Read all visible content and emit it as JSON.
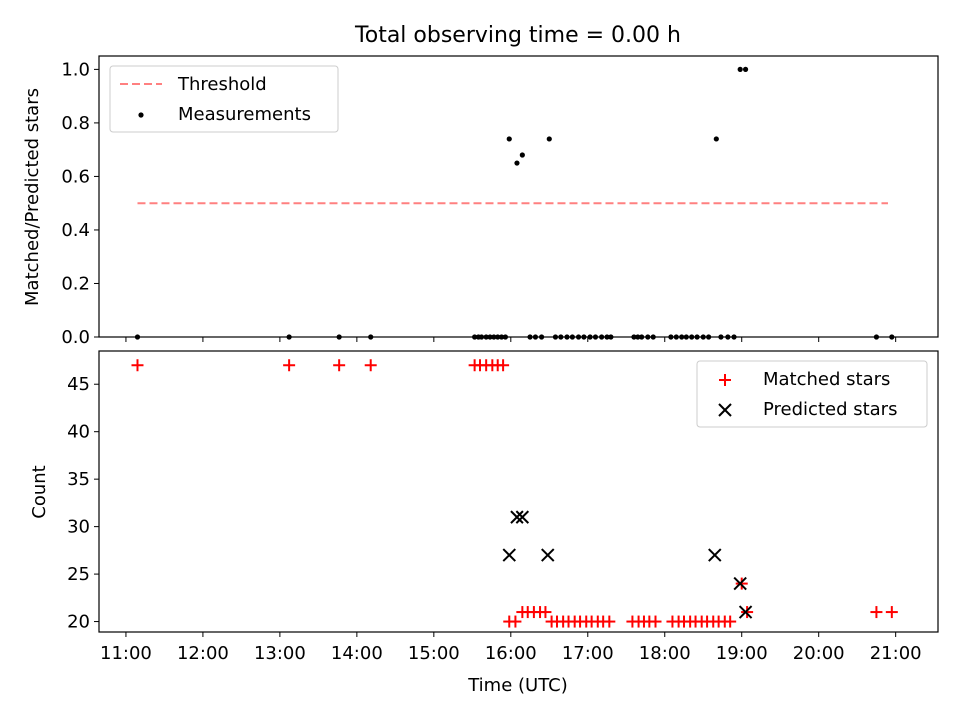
{
  "title": "Total observing time = 0.00 h",
  "colors": {
    "threshold": "#ff8080",
    "matched": "#ff0000",
    "predicted": "#000000",
    "measurement": "#000000"
  },
  "chart_data": [
    {
      "type": "scatter",
      "panel": "top",
      "title": "Total observing time = 0.00 h",
      "ylabel": "Matched/Predicted stars",
      "xlabel": "",
      "xlim": [
        10.65,
        21.55
      ],
      "ylim": [
        0,
        1.05
      ],
      "x_ticks": [
        11,
        12,
        13,
        14,
        15,
        16,
        17,
        18,
        19,
        20,
        21
      ],
      "x_tick_labels": [
        "11:00",
        "12:00",
        "13:00",
        "14:00",
        "15:00",
        "16:00",
        "17:00",
        "18:00",
        "19:00",
        "20:00",
        "21:00"
      ],
      "y_ticks": [
        0.0,
        0.2,
        0.4,
        0.6,
        0.8,
        1.0
      ],
      "y_tick_labels": [
        "0.0",
        "0.2",
        "0.4",
        "0.6",
        "0.8",
        "1.0"
      ],
      "legend": {
        "placement": "top-left",
        "entries": [
          "Threshold",
          "Measurements"
        ]
      },
      "threshold": {
        "name": "Threshold",
        "x": [
          11.15,
          20.9
        ],
        "y": 0.5
      },
      "series": [
        {
          "name": "Measurements",
          "x": [
            11.15,
            13.12,
            13.77,
            14.18,
            15.53,
            15.58,
            15.62,
            15.68,
            15.73,
            15.78,
            15.83,
            15.88,
            15.93,
            15.98,
            16.08,
            16.15,
            16.25,
            16.32,
            16.4,
            16.5,
            16.58,
            16.65,
            16.73,
            16.8,
            16.88,
            16.95,
            17.03,
            17.1,
            17.18,
            17.25,
            17.3,
            17.6,
            17.65,
            17.7,
            17.78,
            17.85,
            18.08,
            18.15,
            18.22,
            18.28,
            18.35,
            18.42,
            18.5,
            18.57,
            18.67,
            18.73,
            18.82,
            18.9,
            18.98,
            19.05,
            20.75,
            20.95
          ],
          "y": [
            0,
            0,
            0,
            0,
            0,
            0,
            0,
            0,
            0,
            0,
            0,
            0,
            0,
            0.74,
            0.65,
            0.68,
            0,
            0,
            0,
            0.74,
            0,
            0,
            0,
            0,
            0,
            0,
            0,
            0,
            0,
            0,
            0,
            0,
            0,
            0,
            0,
            0,
            0,
            0,
            0,
            0,
            0,
            0,
            0,
            0,
            0.74,
            0,
            0,
            0,
            1.0,
            1.0,
            0,
            0
          ]
        }
      ]
    },
    {
      "type": "scatter",
      "panel": "bottom",
      "xlabel": "Time (UTC)",
      "ylabel": "Count",
      "xlim": [
        10.65,
        21.55
      ],
      "ylim": [
        18.9,
        48.5
      ],
      "x_ticks": [
        11,
        12,
        13,
        14,
        15,
        16,
        17,
        18,
        19,
        20,
        21
      ],
      "x_tick_labels": [
        "11:00",
        "12:00",
        "13:00",
        "14:00",
        "15:00",
        "16:00",
        "17:00",
        "18:00",
        "19:00",
        "20:00",
        "21:00"
      ],
      "y_ticks": [
        20,
        25,
        30,
        35,
        40,
        45
      ],
      "y_tick_labels": [
        "20",
        "25",
        "30",
        "35",
        "40",
        "45"
      ],
      "legend": {
        "placement": "top-right",
        "entries": [
          "Matched stars",
          "Predicted stars"
        ]
      },
      "series": [
        {
          "name": "Matched stars",
          "marker": "+",
          "x": [
            11.15,
            13.12,
            13.77,
            14.18,
            15.53,
            15.6,
            15.68,
            15.76,
            15.83,
            15.9,
            15.98,
            16.06,
            16.15,
            16.22,
            16.3,
            16.38,
            16.45,
            16.53,
            16.6,
            16.68,
            16.75,
            16.83,
            16.9,
            16.98,
            17.05,
            17.13,
            17.2,
            17.28,
            17.58,
            17.66,
            17.73,
            17.8,
            17.88,
            18.1,
            18.18,
            18.25,
            18.33,
            18.4,
            18.48,
            18.55,
            18.63,
            18.7,
            18.78,
            18.85,
            19.0,
            19.07,
            20.75,
            20.95
          ],
          "y": [
            47,
            47,
            47,
            47,
            47,
            47,
            47,
            47,
            47,
            47,
            20,
            20,
            21,
            21,
            21,
            21,
            21,
            20,
            20,
            20,
            20,
            20,
            20,
            20,
            20,
            20,
            20,
            20,
            20,
            20,
            20,
            20,
            20,
            20,
            20,
            20,
            20,
            20,
            20,
            20,
            20,
            20,
            20,
            20,
            24,
            21,
            21,
            21
          ]
        },
        {
          "name": "Predicted stars",
          "marker": "x",
          "x": [
            15.98,
            16.08,
            16.15,
            16.48,
            18.65,
            18.98,
            19.05
          ],
          "y": [
            27,
            31,
            31,
            27,
            27,
            24,
            21
          ]
        }
      ]
    }
  ]
}
